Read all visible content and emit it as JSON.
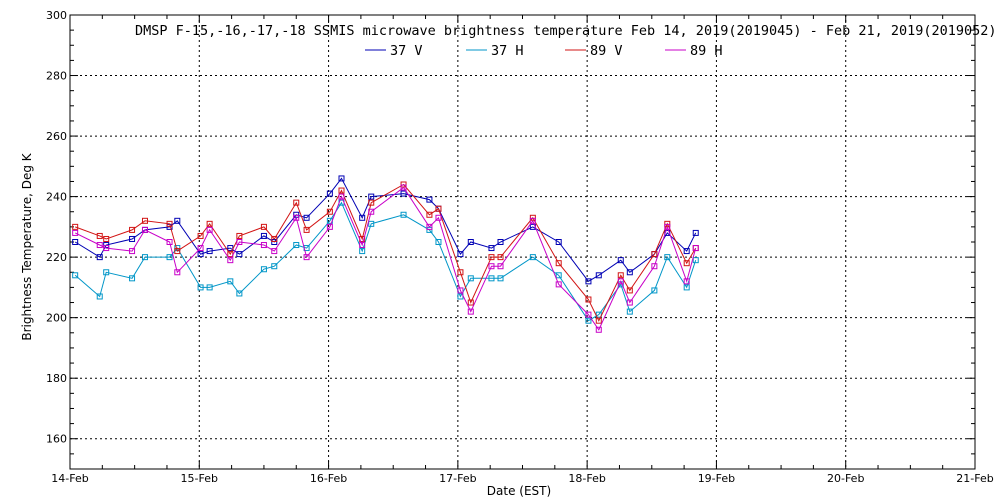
{
  "chart_data": {
    "type": "line",
    "title": "DMSP F-15,-16,-17,-18 SSMIS microwave brightness temperature Feb 14, 2019(2019045) - Feb 21, 2019(2019052)",
    "xlabel": "Date (EST)",
    "ylabel": "Brightness Temperature, Deg K",
    "xlim": [
      0,
      7
    ],
    "ylim": [
      150,
      300
    ],
    "x_ticks": [
      0,
      1,
      2,
      3,
      4,
      5,
      6,
      7
    ],
    "x_tick_labels": [
      "14-Feb",
      "15-Feb",
      "16-Feb",
      "17-Feb",
      "18-Feb",
      "19-Feb",
      "20-Feb",
      "21-Feb"
    ],
    "y_ticks": [
      160,
      180,
      200,
      220,
      240,
      260,
      280,
      300
    ],
    "y_tick_labels": [
      "160",
      "180",
      "200",
      "220",
      "240",
      "260",
      "280",
      "300"
    ],
    "grid": true,
    "legend_position": "top",
    "series": [
      {
        "name": "37 V",
        "color": "#0000b4",
        "points": [
          [
            0.04,
            225
          ],
          [
            0.23,
            220
          ],
          [
            0.28,
            224
          ],
          [
            0.48,
            226
          ],
          [
            0.58,
            229
          ],
          [
            0.77,
            230
          ],
          [
            0.83,
            232
          ],
          [
            1.01,
            221
          ],
          [
            1.08,
            222
          ],
          [
            1.24,
            223
          ],
          [
            1.31,
            221
          ],
          [
            1.5,
            227
          ],
          [
            1.58,
            225
          ],
          [
            1.75,
            234
          ],
          [
            1.83,
            233
          ],
          [
            2.01,
            241
          ],
          [
            2.1,
            246
          ],
          [
            2.26,
            233
          ],
          [
            2.33,
            240
          ],
          [
            2.58,
            241
          ],
          [
            2.78,
            239
          ],
          [
            2.85,
            236
          ],
          [
            3.02,
            221
          ],
          [
            3.1,
            225
          ],
          [
            3.26,
            223
          ],
          [
            3.33,
            225
          ],
          [
            3.58,
            230
          ],
          [
            3.78,
            225
          ],
          [
            4.01,
            212
          ],
          [
            4.09,
            214
          ],
          [
            4.26,
            219
          ],
          [
            4.33,
            215
          ],
          [
            4.52,
            221
          ],
          [
            4.62,
            228
          ],
          [
            4.77,
            222
          ],
          [
            4.84,
            228
          ]
        ]
      },
      {
        "name": "37 H",
        "color": "#0096c8",
        "points": [
          [
            0.04,
            214
          ],
          [
            0.23,
            207
          ],
          [
            0.28,
            215
          ],
          [
            0.48,
            213
          ],
          [
            0.58,
            220
          ],
          [
            0.77,
            220
          ],
          [
            0.83,
            223
          ],
          [
            1.01,
            210
          ],
          [
            1.08,
            210
          ],
          [
            1.24,
            212
          ],
          [
            1.31,
            208
          ],
          [
            1.5,
            216
          ],
          [
            1.58,
            217
          ],
          [
            1.75,
            224
          ],
          [
            1.83,
            223
          ],
          [
            2.01,
            232
          ],
          [
            2.1,
            238
          ],
          [
            2.26,
            222
          ],
          [
            2.33,
            231
          ],
          [
            2.58,
            234
          ],
          [
            2.78,
            229
          ],
          [
            2.85,
            225
          ],
          [
            3.02,
            207
          ],
          [
            3.1,
            213
          ],
          [
            3.26,
            213
          ],
          [
            3.33,
            213
          ],
          [
            3.58,
            220
          ],
          [
            3.78,
            214
          ],
          [
            4.01,
            199
          ],
          [
            4.09,
            201
          ],
          [
            4.26,
            211
          ],
          [
            4.33,
            202
          ],
          [
            4.52,
            209
          ],
          [
            4.62,
            220
          ],
          [
            4.77,
            210
          ],
          [
            4.84,
            219
          ]
        ]
      },
      {
        "name": "89 V",
        "color": "#d21414",
        "points": [
          [
            0.04,
            230
          ],
          [
            0.23,
            227
          ],
          [
            0.28,
            226
          ],
          [
            0.48,
            229
          ],
          [
            0.58,
            232
          ],
          [
            0.77,
            231
          ],
          [
            0.83,
            222
          ],
          [
            1.01,
            227
          ],
          [
            1.08,
            231
          ],
          [
            1.24,
            221
          ],
          [
            1.31,
            227
          ],
          [
            1.5,
            230
          ],
          [
            1.58,
            226
          ],
          [
            1.75,
            238
          ],
          [
            1.83,
            229
          ],
          [
            2.01,
            235
          ],
          [
            2.1,
            242
          ],
          [
            2.26,
            226
          ],
          [
            2.33,
            238
          ],
          [
            2.58,
            244
          ],
          [
            2.78,
            234
          ],
          [
            2.85,
            236
          ],
          [
            3.02,
            215
          ],
          [
            3.1,
            205
          ],
          [
            3.26,
            220
          ],
          [
            3.33,
            220
          ],
          [
            3.58,
            233
          ],
          [
            3.78,
            218
          ],
          [
            4.01,
            206
          ],
          [
            4.09,
            199
          ],
          [
            4.26,
            214
          ],
          [
            4.33,
            209
          ],
          [
            4.52,
            221
          ],
          [
            4.62,
            231
          ],
          [
            4.77,
            218
          ],
          [
            4.84,
            223
          ]
        ]
      },
      {
        "name": "89 H",
        "color": "#c800c8",
        "points": [
          [
            0.04,
            228
          ],
          [
            0.23,
            224
          ],
          [
            0.28,
            223
          ],
          [
            0.48,
            222
          ],
          [
            0.58,
            229
          ],
          [
            0.77,
            225
          ],
          [
            0.83,
            215
          ],
          [
            1.01,
            223
          ],
          [
            1.08,
            229
          ],
          [
            1.24,
            219
          ],
          [
            1.31,
            225
          ],
          [
            1.5,
            224
          ],
          [
            1.58,
            222
          ],
          [
            1.75,
            233
          ],
          [
            1.83,
            220
          ],
          [
            2.01,
            230
          ],
          [
            2.1,
            240
          ],
          [
            2.26,
            224
          ],
          [
            2.33,
            235
          ],
          [
            2.58,
            243
          ],
          [
            2.78,
            230
          ],
          [
            2.85,
            233
          ],
          [
            3.02,
            209
          ],
          [
            3.1,
            202
          ],
          [
            3.26,
            217
          ],
          [
            3.33,
            217
          ],
          [
            3.58,
            232
          ],
          [
            3.78,
            211
          ],
          [
            4.01,
            201
          ],
          [
            4.09,
            196
          ],
          [
            4.26,
            212
          ],
          [
            4.33,
            205
          ],
          [
            4.52,
            217
          ],
          [
            4.62,
            230
          ],
          [
            4.77,
            212
          ],
          [
            4.84,
            223
          ]
        ]
      }
    ]
  }
}
